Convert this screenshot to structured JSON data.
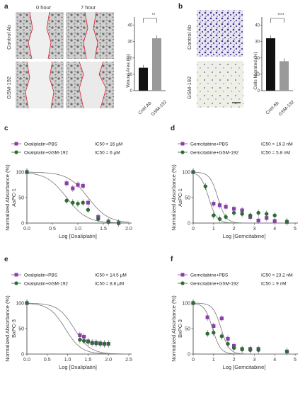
{
  "panels": {
    "a": {
      "letter": "a",
      "col_labels": [
        "0 hour",
        "7 hour"
      ],
      "row_labels": [
        "Control Ab",
        "GSM-192"
      ],
      "bar_chart": {
        "ylabel": "Wound Area (%)",
        "categories": [
          "Cntrl Ab",
          "GSM-192"
        ],
        "values": [
          14,
          32
        ],
        "colors": [
          "#111111",
          "#9a9a9a"
        ],
        "ylim": [
          0,
          45
        ],
        "significance": "**"
      }
    },
    "b": {
      "letter": "b",
      "row_labels": [
        "Control Ab",
        "GSM-192"
      ],
      "bar_chart": {
        "ylabel": "Cells Migrated (%)",
        "categories": [
          "Cntrl Ab",
          "GSM-192"
        ],
        "values": [
          32,
          18
        ],
        "colors": [
          "#111111",
          "#9a9a9a"
        ],
        "ylim": [
          0,
          45
        ],
        "significance": "****"
      }
    }
  },
  "chart_data": [
    {
      "panel": "c",
      "type": "scatter",
      "xlabel": "Log [Oxaliplatin]",
      "ylabel": "Normalized Absorbance (%)",
      "ylabel2": "AsPC-1",
      "xlim": [
        0.0,
        2.0
      ],
      "ylim": [
        0,
        100
      ],
      "xticks": [
        "0.0",
        "0.5",
        "1.0",
        "1.5",
        "2.0"
      ],
      "yticks": [
        "0",
        "50",
        "100"
      ],
      "series": [
        {
          "name": "Oxaliplatin+PBS",
          "ic50": "IC50 = 16 µM",
          "color": "#8a3fa8",
          "marker": "square",
          "x": [
            0.0,
            0.78,
            0.9,
            1.0,
            1.1,
            1.2,
            1.4,
            1.6,
            1.8
          ],
          "y": [
            100,
            78,
            68,
            75,
            73,
            40,
            12,
            3,
            0
          ],
          "ic50_log": 1.2
        },
        {
          "name": "Oxaliplatin+GSM-192",
          "ic50": "IC50 = 6 µM",
          "color": "#2e6b36",
          "marker": "circle",
          "x": [
            0.0,
            0.78,
            0.9,
            1.0,
            1.1,
            1.2,
            1.4,
            1.6,
            1.8
          ],
          "y": [
            100,
            44,
            40,
            38,
            40,
            26,
            8,
            2,
            0
          ],
          "ic50_log": 0.78
        }
      ]
    },
    {
      "panel": "d",
      "type": "scatter",
      "xlabel": "Log [Gemcitabine]",
      "ylabel": "Normalized Absorbance (%)",
      "ylabel2": "AsPC-1",
      "xlim": [
        0,
        5
      ],
      "ylim": [
        0,
        100
      ],
      "xticks": [
        "0",
        "1",
        "2",
        "3",
        "4",
        "5"
      ],
      "yticks": [
        "0",
        "50",
        "100"
      ],
      "series": [
        {
          "name": "Gemcitabine+PBS",
          "ic50": "IC50 = 16.3 nM",
          "color": "#8a3fa8",
          "marker": "square",
          "x": [
            0.0,
            1.0,
            1.3,
            1.6,
            2.0,
            2.4,
            2.8,
            3.2,
            3.6,
            4.0,
            4.6
          ],
          "y": [
            100,
            38,
            35,
            32,
            28,
            25,
            12,
            5,
            10,
            4,
            2
          ],
          "ic50_log": 1.21
        },
        {
          "name": "Gemcitabine+GSM-192",
          "ic50": "IC50 = 5.8 nM",
          "color": "#2e6b36",
          "marker": "circle",
          "x": [
            0.0,
            0.6,
            1.0,
            1.3,
            1.6,
            2.0,
            2.4,
            2.8,
            3.2,
            3.6,
            4.0,
            4.6
          ],
          "y": [
            100,
            72,
            15,
            8,
            12,
            20,
            18,
            15,
            20,
            18,
            15,
            3
          ],
          "ic50_log": 0.76
        }
      ]
    },
    {
      "panel": "e",
      "type": "scatter",
      "xlabel": "Log [Oxaliplatin]",
      "ylabel": "Normalized Absorbance (%)",
      "ylabel2": "BxPC-3",
      "xlim": [
        0.0,
        2.5
      ],
      "ylim": [
        0,
        100
      ],
      "xticks": [
        "0.0",
        "0.5",
        "1.0",
        "1.5",
        "2.0",
        "2.5"
      ],
      "yticks": [
        "0",
        "50",
        "100"
      ],
      "series": [
        {
          "name": "Oxaliplatin+PBS",
          "ic50": "IC50 = 14.5 µM",
          "color": "#8a3fa8",
          "marker": "square",
          "x": [
            0.0,
            1.3,
            1.4,
            1.5,
            1.6,
            1.7,
            1.8,
            1.9,
            2.0
          ],
          "y": [
            100,
            37,
            34,
            25,
            22,
            22,
            21,
            20,
            20
          ],
          "ic50_log": 1.16
        },
        {
          "name": "Oxaliplatin+GSM-192",
          "ic50": "IC50 = 8.8 µM",
          "color": "#2e6b36",
          "marker": "circle",
          "x": [
            0.0,
            1.3,
            1.4,
            1.5,
            1.6,
            1.7,
            1.8,
            1.9,
            2.0
          ],
          "y": [
            100,
            28,
            26,
            24,
            22,
            21,
            20,
            20,
            20
          ],
          "ic50_log": 0.94
        }
      ]
    },
    {
      "panel": "f",
      "type": "scatter",
      "xlabel": "Log [Gemcitabine]",
      "ylabel": "Normalized Absorbance (%)",
      "ylabel2": "BxPC-3",
      "xlim": [
        0,
        5
      ],
      "ylim": [
        0,
        100
      ],
      "xticks": [
        "0",
        "1",
        "2",
        "3",
        "4",
        "5"
      ],
      "yticks": [
        "0",
        "50",
        "100"
      ],
      "series": [
        {
          "name": "Gemcitabine+PBS",
          "ic50": "IC50 = 23.2 nM",
          "color": "#8a3fa8",
          "marker": "square",
          "x": [
            0.0,
            0.7,
            1.0,
            1.4,
            1.7,
            2.0,
            2.4,
            2.8,
            3.2,
            4.6
          ],
          "y": [
            100,
            72,
            55,
            70,
            30,
            16,
            10,
            10,
            10,
            5
          ],
          "ic50_log": 1.37
        },
        {
          "name": "Gemcitabine+GSM-192",
          "ic50": "IC50 = 9 nM",
          "color": "#2e6b36",
          "marker": "circle",
          "x": [
            0.0,
            0.7,
            1.0,
            1.4,
            1.7,
            2.0,
            2.4,
            2.8,
            3.2,
            4.6
          ],
          "y": [
            100,
            40,
            42,
            35,
            20,
            12,
            9,
            8,
            8,
            5
          ],
          "ic50_log": 0.95
        }
      ]
    }
  ]
}
